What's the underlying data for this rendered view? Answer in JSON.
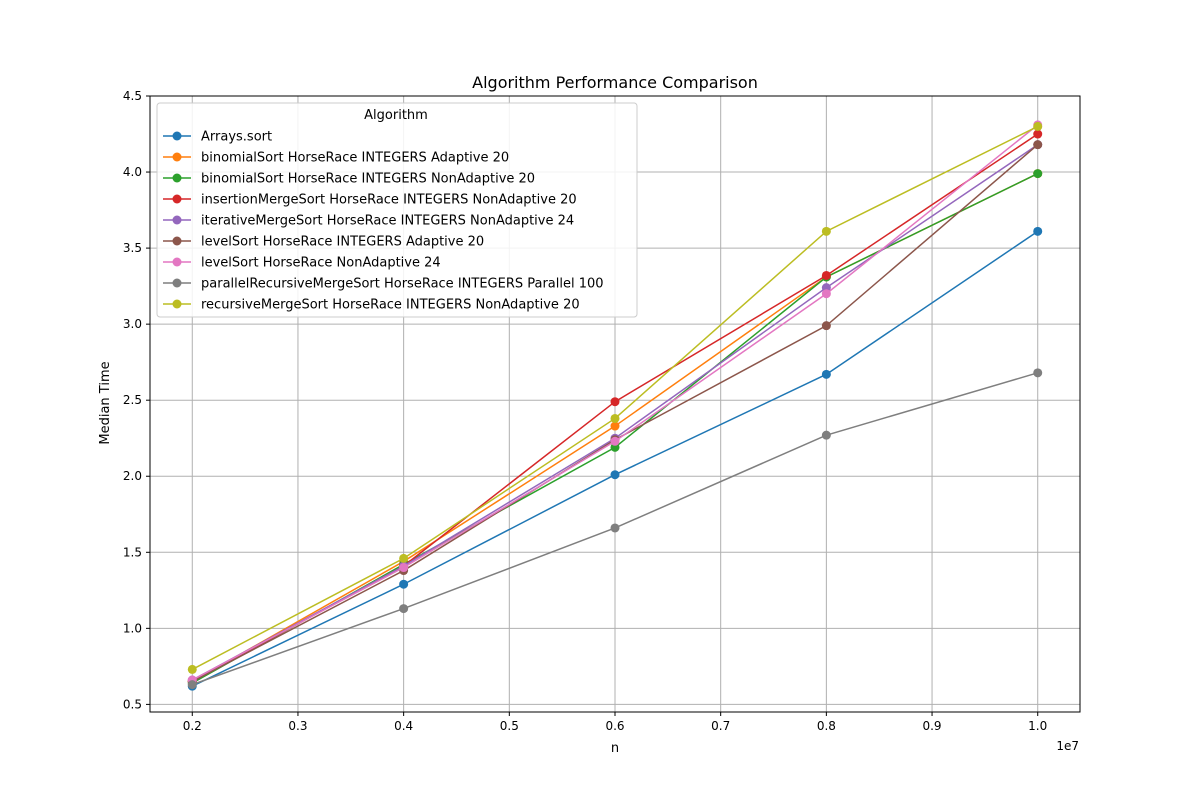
{
  "chart_data": {
    "type": "line",
    "title": "Algorithm Performance Comparison",
    "xlabel": "n",
    "ylabel": "Median Time",
    "x_offset_label": "1e7",
    "xlim": [
      0.16,
      1.04
    ],
    "ylim": [
      0.45,
      4.5
    ],
    "x_ticks": [
      0.2,
      0.3,
      0.4,
      0.5,
      0.6,
      0.7,
      0.8,
      0.9,
      1.0
    ],
    "x_tick_labels": [
      "0.2",
      "0.3",
      "0.4",
      "0.5",
      "0.6",
      "0.7",
      "0.8",
      "0.9",
      "1.0"
    ],
    "y_ticks": [
      0.5,
      1.0,
      1.5,
      2.0,
      2.5,
      3.0,
      3.5,
      4.0,
      4.5
    ],
    "y_tick_labels": [
      "0.5",
      "1.0",
      "1.5",
      "2.0",
      "2.5",
      "3.0",
      "3.5",
      "4.0",
      "4.5"
    ],
    "grid": true,
    "legend": {
      "title": "Algorithm",
      "placement": "top-left"
    },
    "x": [
      0.2,
      0.4,
      0.6,
      0.8,
      1.0
    ],
    "series": [
      {
        "name": "Arrays.sort",
        "color": "#1f77b4",
        "values": [
          0.62,
          1.29,
          2.01,
          2.67,
          3.61
        ]
      },
      {
        "name": "binomialSort HorseRace INTEGERS Adaptive 20",
        "color": "#ff7f0e",
        "values": [
          0.65,
          1.44,
          2.33,
          3.31,
          3.99
        ]
      },
      {
        "name": "binomialSort HorseRace INTEGERS NonAdaptive 20",
        "color": "#2ca02c",
        "values": [
          0.64,
          1.42,
          2.19,
          3.31,
          3.99
        ]
      },
      {
        "name": "insertionMergeSort HorseRace INTEGERS NonAdaptive 20",
        "color": "#d62728",
        "values": [
          0.65,
          1.41,
          2.49,
          3.32,
          4.25
        ]
      },
      {
        "name": "iterativeMergeSort HorseRace INTEGERS NonAdaptive 24",
        "color": "#9467bd",
        "values": [
          0.66,
          1.41,
          2.25,
          3.24,
          4.18
        ]
      },
      {
        "name": "levelSort HorseRace INTEGERS Adaptive 20",
        "color": "#8c564b",
        "values": [
          0.65,
          1.38,
          2.24,
          2.99,
          4.18
        ]
      },
      {
        "name": "levelSort HorseRace NonAdaptive 24",
        "color": "#e377c2",
        "values": [
          0.66,
          1.4,
          2.23,
          3.2,
          4.31
        ]
      },
      {
        "name": "parallelRecursiveMergeSort HorseRace INTEGERS Parallel 100",
        "color": "#7f7f7f",
        "values": [
          0.63,
          1.13,
          1.66,
          2.27,
          2.68
        ]
      },
      {
        "name": "recursiveMergeSort HorseRace INTEGERS NonAdaptive 20",
        "color": "#bcbd22",
        "values": [
          0.73,
          1.46,
          2.38,
          3.61,
          4.3
        ]
      }
    ]
  }
}
